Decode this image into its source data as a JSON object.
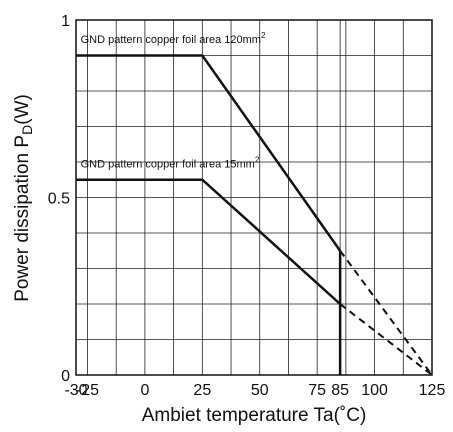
{
  "chart_data": {
    "type": "line",
    "title": "",
    "xlabel": "Ambiet temperature Ta(˚C)",
    "ylabel_main": "Power dissipation P",
    "ylabel_sub": "D",
    "ylabel_unit": "(W)",
    "xlim": [
      -30,
      125
    ],
    "ylim": [
      0,
      1
    ],
    "x_ticks": [
      -30,
      -25,
      0,
      25,
      50,
      75,
      85,
      100,
      125
    ],
    "y_ticks": [
      0,
      0.5,
      1
    ],
    "x_gridlines": [
      -25,
      -12.5,
      0,
      12.5,
      25,
      37.5,
      50,
      62.5,
      75,
      85,
      87.5,
      100,
      112.5
    ],
    "y_gridlines": [
      0.1,
      0.2,
      0.3,
      0.4,
      0.5,
      0.6,
      0.7,
      0.8,
      0.9
    ],
    "grid": true,
    "series": [
      {
        "name": "GND pattern copper foil area 120mm",
        "name_sup": "2",
        "label_x": -28,
        "label_y": 0.935,
        "x": [
          -30,
          25,
          85,
          125
        ],
        "y": [
          0.9,
          0.9,
          0.35,
          0
        ],
        "dashed_from_x": 85
      },
      {
        "name": "GND pattern copper foil area 15mm",
        "name_sup": "2",
        "label_x": -28,
        "label_y": 0.585,
        "x": [
          -30,
          25,
          85,
          125
        ],
        "y": [
          0.55,
          0.55,
          0.2,
          0
        ],
        "dashed_from_x": 85
      }
    ],
    "vertical_marker": {
      "x": 85,
      "y_from": 0,
      "y_to": 0.35
    }
  }
}
